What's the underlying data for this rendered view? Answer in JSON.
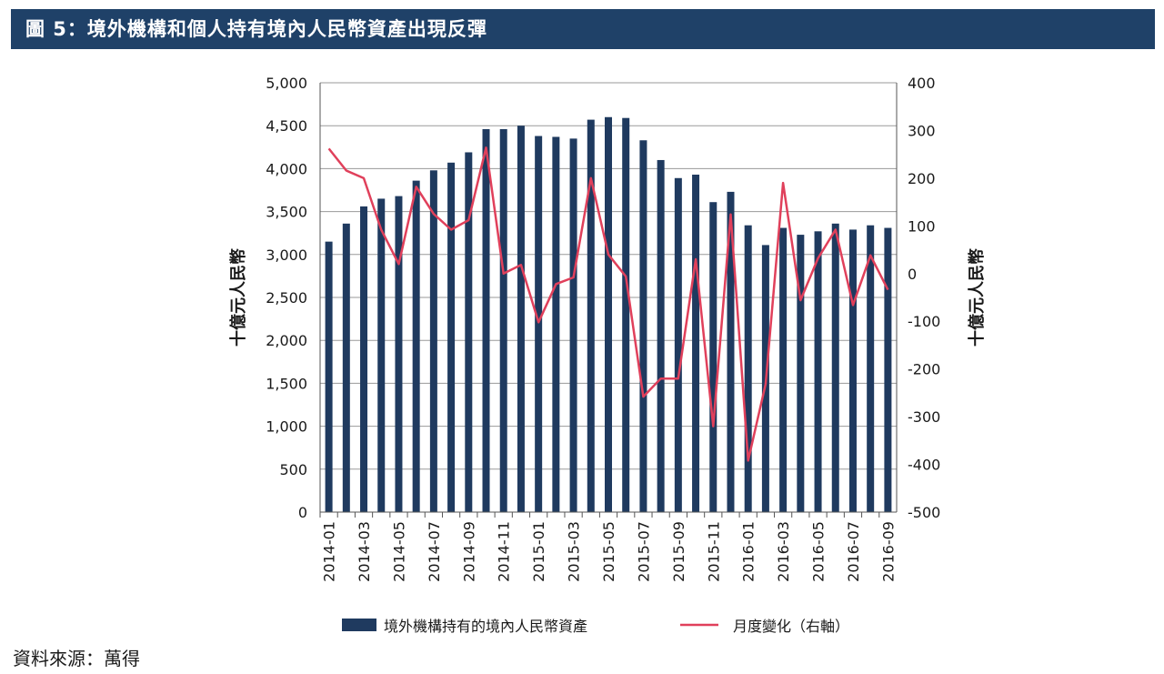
{
  "header": {
    "title": "圖 5：境外機構和個人持有境內人民幣資產出現反彈"
  },
  "source": {
    "text": "資料來源：萬得"
  },
  "colors": {
    "bar": "#1f3a5f",
    "line": "#e0405b",
    "grid": "#9a9a9a",
    "header_bg": "#1f4168"
  },
  "chart_data": {
    "type": "bar+line",
    "title": "境外機構和個人持有境內人民幣資產出現反彈",
    "categories": [
      "2014-01",
      "2014-02",
      "2014-03",
      "2014-04",
      "2014-05",
      "2014-06",
      "2014-07",
      "2014-08",
      "2014-09",
      "2014-10",
      "2014-11",
      "2014-12",
      "2015-01",
      "2015-02",
      "2015-03",
      "2015-04",
      "2015-05",
      "2015-06",
      "2015-07",
      "2015-08",
      "2015-09",
      "2015-10",
      "2015-11",
      "2015-12",
      "2016-01",
      "2016-02",
      "2016-03",
      "2016-04",
      "2016-05",
      "2016-06",
      "2016-07",
      "2016-08",
      "2016-09"
    ],
    "x_tick_labels": [
      "2014-01",
      "2014-03",
      "2014-05",
      "2014-07",
      "2014-09",
      "2014-11",
      "2015-01",
      "2015-03",
      "2015-05",
      "2015-07",
      "2015-09",
      "2015-11",
      "2016-01",
      "2016-03",
      "2016-05",
      "2016-07",
      "2016-09"
    ],
    "series": [
      {
        "name": "境外機構持有的境內人民幣資產",
        "kind": "bar",
        "axis": "left",
        "values": [
          3150,
          3360,
          3560,
          3650,
          3680,
          3860,
          3980,
          4070,
          4190,
          4460,
          4460,
          4500,
          4380,
          4370,
          4350,
          4570,
          4600,
          4590,
          4330,
          4100,
          3890,
          3930,
          3610,
          3730,
          3340,
          3110,
          3310,
          3230,
          3270,
          3360,
          3290,
          3340,
          3310
        ]
      },
      {
        "name": "月度變化（右軸）",
        "kind": "line",
        "axis": "right",
        "values": [
          262,
          216,
          200,
          92,
          20,
          182,
          125,
          92,
          112,
          264,
          0,
          18,
          -102,
          -22,
          -8,
          200,
          40,
          -6,
          -258,
          -220,
          -220,
          30,
          -320,
          124,
          -392,
          -232,
          190,
          -56,
          32,
          92,
          -66,
          38,
          -34
        ]
      }
    ],
    "y_left": {
      "label": "十億元人民幣",
      "range": [
        0,
        5000
      ],
      "ticks": [
        0,
        500,
        1000,
        1500,
        2000,
        2500,
        3000,
        3500,
        4000,
        4500,
        5000
      ],
      "tick_labels": [
        "0",
        "500",
        "1,000",
        "1,500",
        "2,000",
        "2,500",
        "3,000",
        "3,500",
        "4,000",
        "4,500",
        "5,000"
      ]
    },
    "y_right": {
      "label": "十億元人民幣",
      "range": [
        -500,
        400
      ],
      "ticks": [
        -500,
        -400,
        -300,
        -200,
        -100,
        0,
        100,
        200,
        300,
        400
      ],
      "tick_labels": [
        "-500",
        "-400",
        "-300",
        "-200",
        "-100",
        "0",
        "100",
        "200",
        "300",
        "400"
      ]
    },
    "grid": true,
    "legend_position": "bottom"
  }
}
